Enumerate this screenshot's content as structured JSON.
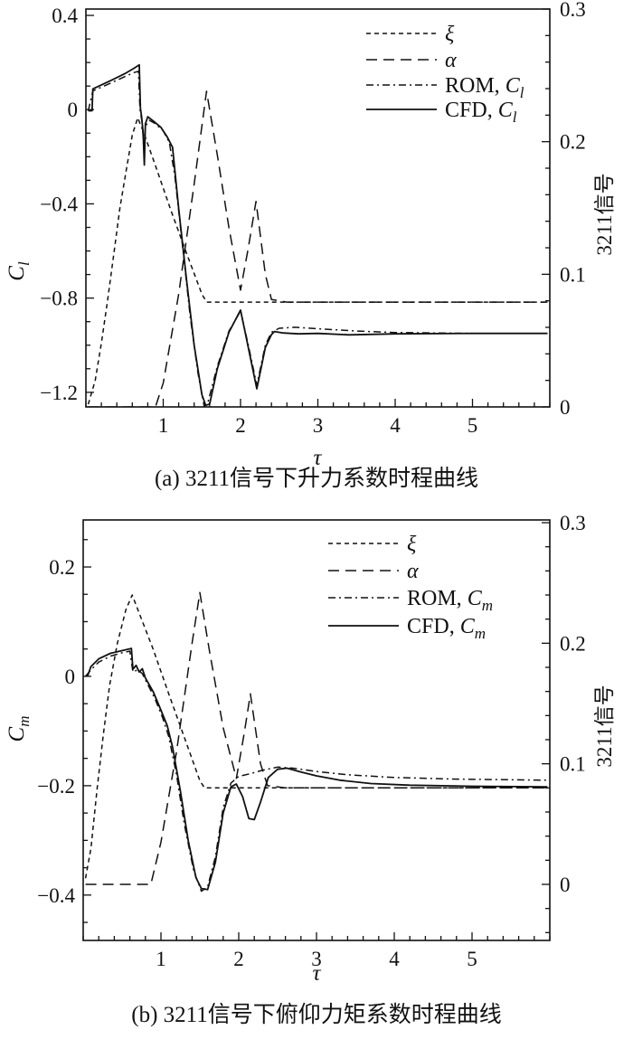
{
  "figure": {
    "background": "#ffffff",
    "ink_color": "#111111"
  },
  "chart_data": [
    {
      "id": "a",
      "type": "line",
      "caption": "(a) 3211信号下升力系数时程曲线",
      "xlabel": "τ",
      "x_axis": {
        "range": [
          0,
          6
        ],
        "ticks": [
          1,
          2,
          3,
          4,
          5
        ],
        "labels": [
          "1",
          "2",
          "3",
          "4",
          "5"
        ],
        "minor_step": 0.2
      },
      "left_axis": {
        "title_main": "C",
        "title_sub": "l",
        "range": [
          -1.262,
          0.427
        ],
        "ticks": [
          0.4,
          0,
          -0.4,
          -0.8,
          -1.2
        ],
        "labels": [
          "0.4",
          "0",
          "−0.4",
          "−0.8",
          "−1.2"
        ],
        "minor_step": 0.1
      },
      "right_axis": {
        "title": "3211信号",
        "range": [
          0,
          0.3
        ],
        "ticks": [
          0,
          0.1,
          0.2,
          0.3
        ],
        "labels": [
          "0",
          "0.1",
          "0.2",
          "0.3"
        ],
        "minor_step": 0.02
      },
      "legend": {
        "items": [
          {
            "series": "xi",
            "pre": "ξ",
            "pre_italic": true,
            "var": "",
            "sub": ""
          },
          {
            "series": "alpha",
            "pre": "α",
            "pre_italic": true,
            "var": "",
            "sub": ""
          },
          {
            "series": "rom",
            "pre": "ROM, ",
            "pre_italic": false,
            "var": "C",
            "sub": "l"
          },
          {
            "series": "cfd",
            "pre": "CFD, ",
            "pre_italic": false,
            "var": "C",
            "sub": "l"
          }
        ]
      },
      "series": {
        "xi": {
          "name": "xi-3211-signal",
          "axis": "right",
          "style": "dash-short",
          "points": [
            [
              0.03,
              0.002
            ],
            [
              0.12,
              0.02
            ],
            [
              0.2,
              0.048
            ],
            [
              0.28,
              0.08
            ],
            [
              0.36,
              0.115
            ],
            [
              0.44,
              0.15
            ],
            [
              0.52,
              0.178
            ],
            [
              0.6,
              0.205
            ],
            [
              0.67,
              0.218
            ],
            [
              0.74,
              0.208
            ],
            [
              0.9,
              0.182
            ],
            [
              1.1,
              0.148
            ],
            [
              1.3,
              0.116
            ],
            [
              1.5,
              0.085
            ],
            [
              1.56,
              0.079
            ],
            [
              2.2,
              0.079
            ],
            [
              3.0,
              0.079
            ],
            [
              4.5,
              0.079
            ],
            [
              5.97,
              0.079
            ]
          ]
        },
        "alpha": {
          "name": "alpha-3211-signal",
          "axis": "right",
          "style": "dash-long",
          "points": [
            [
              0.03,
              0.0
            ],
            [
              0.9,
              0.0
            ],
            [
              1.0,
              0.018
            ],
            [
              1.2,
              0.085
            ],
            [
              1.4,
              0.168
            ],
            [
              1.56,
              0.238
            ],
            [
              1.7,
              0.19
            ],
            [
              1.85,
              0.135
            ],
            [
              2.0,
              0.088
            ],
            [
              2.1,
              0.12
            ],
            [
              2.2,
              0.155
            ],
            [
              2.32,
              0.1
            ],
            [
              2.4,
              0.081
            ],
            [
              2.6,
              0.079
            ],
            [
              3.5,
              0.079
            ],
            [
              4.8,
              0.079
            ],
            [
              5.97,
              0.079
            ]
          ]
        },
        "rom": {
          "name": "rom-lift-coefficient",
          "axis": "left",
          "style": "dash-dot",
          "points": [
            [
              0.03,
              -0.005
            ],
            [
              0.09,
              0.08
            ],
            [
              0.2,
              0.095
            ],
            [
              0.35,
              0.117
            ],
            [
              0.5,
              0.14
            ],
            [
              0.62,
              0.157
            ],
            [
              0.68,
              0.163
            ],
            [
              0.7,
              0.0
            ],
            [
              0.73,
              -0.06
            ],
            [
              0.75,
              -0.17
            ],
            [
              0.77,
              -0.07
            ],
            [
              0.82,
              -0.045
            ],
            [
              0.9,
              -0.06
            ],
            [
              1.0,
              -0.09
            ],
            [
              1.08,
              -0.14
            ],
            [
              1.15,
              -0.28
            ],
            [
              1.25,
              -0.58
            ],
            [
              1.35,
              -0.88
            ],
            [
              1.45,
              -1.12
            ],
            [
              1.53,
              -1.26
            ],
            [
              1.58,
              -1.24
            ],
            [
              1.7,
              -1.09
            ],
            [
              1.85,
              -0.94
            ],
            [
              2.0,
              -0.855
            ],
            [
              2.1,
              -1.0
            ],
            [
              2.21,
              -1.17
            ],
            [
              2.32,
              -1.0
            ],
            [
              2.4,
              -0.945
            ],
            [
              2.5,
              -0.928
            ],
            [
              2.7,
              -0.924
            ],
            [
              3.0,
              -0.93
            ],
            [
              3.5,
              -0.94
            ],
            [
              4.0,
              -0.946
            ],
            [
              5.0,
              -0.95
            ],
            [
              5.97,
              -0.95
            ]
          ]
        },
        "cfd": {
          "name": "cfd-lift-coefficient",
          "axis": "left",
          "style": "solid",
          "points": [
            [
              0.03,
              -0.005
            ],
            [
              0.08,
              -0.005
            ],
            [
              0.09,
              0.088
            ],
            [
              0.2,
              0.105
            ],
            [
              0.35,
              0.128
            ],
            [
              0.5,
              0.152
            ],
            [
              0.62,
              0.175
            ],
            [
              0.69,
              0.19
            ],
            [
              0.705,
              0.005
            ],
            [
              0.72,
              -0.03
            ],
            [
              0.74,
              -0.1
            ],
            [
              0.755,
              -0.235
            ],
            [
              0.77,
              -0.06
            ],
            [
              0.8,
              -0.03
            ],
            [
              0.88,
              -0.05
            ],
            [
              0.97,
              -0.075
            ],
            [
              1.05,
              -0.115
            ],
            [
              1.12,
              -0.16
            ],
            [
              1.2,
              -0.42
            ],
            [
              1.3,
              -0.72
            ],
            [
              1.4,
              -1.0
            ],
            [
              1.5,
              -1.21
            ],
            [
              1.55,
              -1.255
            ],
            [
              1.6,
              -1.25
            ],
            [
              1.7,
              -1.1
            ],
            [
              1.85,
              -0.945
            ],
            [
              2.0,
              -0.851
            ],
            [
              2.1,
              -1.01
            ],
            [
              2.21,
              -1.185
            ],
            [
              2.32,
              -1.01
            ],
            [
              2.4,
              -0.955
            ],
            [
              2.44,
              -0.942
            ],
            [
              2.55,
              -0.948
            ],
            [
              2.75,
              -0.952
            ],
            [
              3.0,
              -0.95
            ],
            [
              3.4,
              -0.956
            ],
            [
              4.0,
              -0.952
            ],
            [
              5.0,
              -0.95
            ],
            [
              5.97,
              -0.95
            ]
          ]
        }
      }
    },
    {
      "id": "b",
      "type": "line",
      "caption": "(b) 3211信号下俯仰力矩系数时程曲线",
      "xlabel": "τ",
      "x_axis": {
        "range": [
          0,
          6
        ],
        "ticks": [
          1,
          2,
          3,
          4,
          5
        ],
        "labels": [
          "1",
          "2",
          "3",
          "4",
          "5"
        ],
        "minor_step": 0.2
      },
      "left_axis": {
        "title_main": "C",
        "title_sub": "m",
        "range": [
          -0.483,
          0.286
        ],
        "ticks": [
          0.2,
          0,
          -0.2,
          -0.4
        ],
        "labels": [
          "0.2",
          "0",
          "−0.2",
          "−0.4"
        ],
        "minor_step": 0.05
      },
      "right_axis": {
        "title": "3211信号",
        "range": [
          -0.0465,
          0.30225
        ],
        "ticks": [
          0,
          0.1,
          0.2,
          0.3
        ],
        "labels": [
          "0",
          "0.1",
          "0.2",
          "0.3"
        ],
        "minor_step": 0.02
      },
      "legend": {
        "items": [
          {
            "series": "xi",
            "pre": "ξ",
            "pre_italic": true,
            "var": "",
            "sub": ""
          },
          {
            "series": "alpha",
            "pre": "α",
            "pre_italic": true,
            "var": "",
            "sub": ""
          },
          {
            "series": "rom",
            "pre": "ROM, ",
            "pre_italic": false,
            "var": "C",
            "sub": "m"
          },
          {
            "series": "cfd",
            "pre": "CFD, ",
            "pre_italic": false,
            "var": "C",
            "sub": "m"
          }
        ]
      },
      "series": {
        "xi": {
          "name": "xi-3211-signal",
          "axis": "right",
          "style": "dash-short",
          "points": [
            [
              0.03,
              0.005
            ],
            [
              0.1,
              0.03
            ],
            [
              0.18,
              0.08
            ],
            [
              0.26,
              0.125
            ],
            [
              0.34,
              0.165
            ],
            [
              0.44,
              0.2
            ],
            [
              0.55,
              0.228
            ],
            [
              0.63,
              0.24
            ],
            [
              0.72,
              0.225
            ],
            [
              0.9,
              0.195
            ],
            [
              1.1,
              0.158
            ],
            [
              1.3,
              0.122
            ],
            [
              1.5,
              0.086
            ],
            [
              1.56,
              0.08
            ],
            [
              2.2,
              0.08
            ],
            [
              3.0,
              0.08
            ],
            [
              4.5,
              0.08
            ],
            [
              5.97,
              0.08
            ]
          ]
        },
        "alpha": {
          "name": "alpha-3211-signal",
          "axis": "right",
          "style": "dash-long",
          "points": [
            [
              0.03,
              0.0
            ],
            [
              0.87,
              0.0
            ],
            [
              1.0,
              0.035
            ],
            [
              1.2,
              0.11
            ],
            [
              1.4,
              0.2
            ],
            [
              1.5,
              0.242
            ],
            [
              1.62,
              0.195
            ],
            [
              1.8,
              0.13
            ],
            [
              1.97,
              0.088
            ],
            [
              2.07,
              0.125
            ],
            [
              2.15,
              0.158
            ],
            [
              2.28,
              0.1
            ],
            [
              2.37,
              0.082
            ],
            [
              2.6,
              0.08
            ],
            [
              3.5,
              0.08
            ],
            [
              4.8,
              0.08
            ],
            [
              5.97,
              0.08
            ]
          ]
        },
        "rom": {
          "name": "rom-pitching-moment-coefficient",
          "axis": "left",
          "style": "dash-dot",
          "points": [
            [
              0.03,
              0.0
            ],
            [
              0.1,
              0.012
            ],
            [
              0.2,
              0.026
            ],
            [
              0.35,
              0.037
            ],
            [
              0.5,
              0.043
            ],
            [
              0.6,
              0.046
            ],
            [
              0.64,
              0.008
            ],
            [
              0.7,
              0.012
            ],
            [
              0.76,
              0.005
            ],
            [
              0.82,
              -0.012
            ],
            [
              0.92,
              -0.04
            ],
            [
              1.02,
              -0.075
            ],
            [
              1.1,
              -0.11
            ],
            [
              1.2,
              -0.18
            ],
            [
              1.3,
              -0.27
            ],
            [
              1.42,
              -0.355
            ],
            [
              1.52,
              -0.393
            ],
            [
              1.6,
              -0.385
            ],
            [
              1.7,
              -0.33
            ],
            [
              1.8,
              -0.24
            ],
            [
              1.9,
              -0.195
            ],
            [
              2.0,
              -0.183
            ],
            [
              2.15,
              -0.178
            ],
            [
              2.3,
              -0.172
            ],
            [
              2.5,
              -0.166
            ],
            [
              2.7,
              -0.168
            ],
            [
              3.0,
              -0.174
            ],
            [
              3.4,
              -0.18
            ],
            [
              4.0,
              -0.185
            ],
            [
              4.8,
              -0.188
            ],
            [
              5.97,
              -0.19
            ]
          ]
        },
        "cfd": {
          "name": "cfd-pitching-moment-coefficient",
          "axis": "left",
          "style": "solid",
          "points": [
            [
              0.03,
              0.0
            ],
            [
              0.06,
              0.002
            ],
            [
              0.1,
              0.018
            ],
            [
              0.2,
              0.032
            ],
            [
              0.35,
              0.042
            ],
            [
              0.5,
              0.047
            ],
            [
              0.62,
              0.051
            ],
            [
              0.64,
              0.013
            ],
            [
              0.68,
              0.02
            ],
            [
              0.72,
              0.008
            ],
            [
              0.76,
              0.014
            ],
            [
              0.8,
              -0.003
            ],
            [
              0.9,
              -0.028
            ],
            [
              1.0,
              -0.062
            ],
            [
              1.08,
              -0.09
            ],
            [
              1.15,
              -0.13
            ],
            [
              1.25,
              -0.21
            ],
            [
              1.35,
              -0.3
            ],
            [
              1.45,
              -0.368
            ],
            [
              1.52,
              -0.388
            ],
            [
              1.6,
              -0.39
            ],
            [
              1.7,
              -0.34
            ],
            [
              1.8,
              -0.25
            ],
            [
              1.9,
              -0.202
            ],
            [
              1.97,
              -0.197
            ],
            [
              2.05,
              -0.22
            ],
            [
              2.13,
              -0.26
            ],
            [
              2.2,
              -0.262
            ],
            [
              2.28,
              -0.23
            ],
            [
              2.38,
              -0.185
            ],
            [
              2.5,
              -0.17
            ],
            [
              2.62,
              -0.168
            ],
            [
              2.8,
              -0.175
            ],
            [
              3.0,
              -0.182
            ],
            [
              3.3,
              -0.19
            ],
            [
              3.7,
              -0.196
            ],
            [
              4.2,
              -0.199
            ],
            [
              5.0,
              -0.201
            ],
            [
              5.97,
              -0.202
            ]
          ]
        }
      }
    }
  ]
}
